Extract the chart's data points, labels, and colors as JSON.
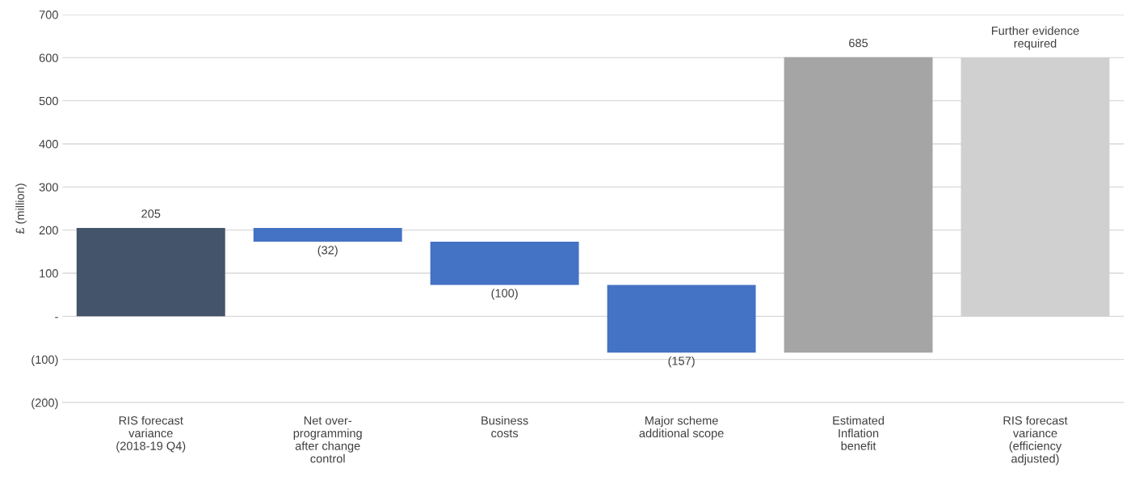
{
  "chart_data": {
    "type": "bar",
    "ylabel": "£ (million)",
    "categories": [
      "RIS forecast\nvariance\n(2018-19 Q4)",
      "Net over-\nprogramming\nafter change\ncontrol",
      "Business\ncosts",
      "Major scheme\nadditional scope",
      "Estimated\nInflation\nbenefit",
      "RIS forecast\nvariance\n(efficiency\nadjusted)"
    ],
    "values": [
      205,
      -32,
      -100,
      -157,
      685,
      600
    ],
    "base": [
      0,
      205,
      173,
      73,
      -84,
      0
    ],
    "colors": [
      "#44546a",
      "#4472c4",
      "#4472c4",
      "#4472c4",
      "#a5a5a5",
      "#d0d0d0"
    ],
    "value_labels": [
      "205",
      "(32)",
      "(100)",
      "(157)",
      "685",
      "Further evidence\nrequired"
    ],
    "ylim": [
      -200,
      700
    ],
    "yticks": [
      {
        "value": -200,
        "label": "(200)"
      },
      {
        "value": -100,
        "label": "(100)"
      },
      {
        "value": 0,
        "label": "-"
      },
      100,
      200,
      300,
      400,
      500,
      600,
      700
    ],
    "grid": "y",
    "legend": false
  }
}
